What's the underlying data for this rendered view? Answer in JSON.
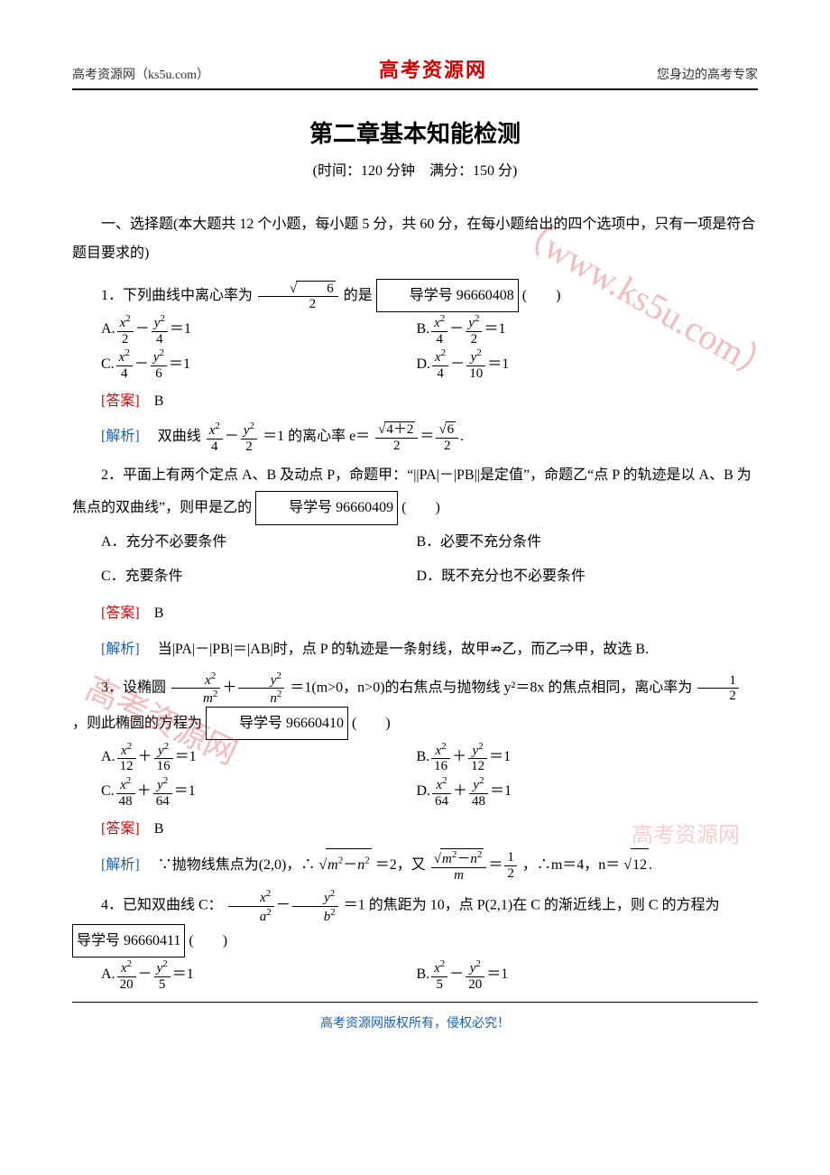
{
  "header": {
    "left": "高考资源网（ks5u.com）",
    "center": "高考资源网",
    "right": "您身边的高考专家"
  },
  "title": "第二章基本知能检测",
  "subtitle": "(时间：120 分钟　满分：150 分)",
  "section1_intro": "一、选择题(本大题共 12 个小题，每小题 5 分，共 60 分，在每小题给出的四个选项中，只有一项是符合题目要求的)",
  "q1": {
    "lead": "1．下列曲线中离心率为",
    "after": "的是",
    "box": "导学号 96660408",
    "paren": "(　　)",
    "A": "A.",
    "B": "B.",
    "C": "C.",
    "D": "D.",
    "ans_label": "[答案]",
    "ans": "B",
    "ana_label": "[解析]",
    "ana_text1": "双曲线",
    "ana_text2": "＝1 的离心率 e＝"
  },
  "q2": {
    "text": "2．平面上有两个定点 A、B 及动点 P，命题甲：“||PA|－|PB||是定值”，命题乙“点 P 的轨迹是以 A、B 为焦点的双曲线”，则甲是乙的",
    "box": "导学号 96660409",
    "paren": "(　　)",
    "A": "A．充分不必要条件",
    "B": "B．必要不充分条件",
    "C": "C．充要条件",
    "D": "D．既不充分也不必要条件",
    "ans_label": "[答案]",
    "ans": "B",
    "ana_label": "[解析]",
    "ana_text": "当|PA|－|PB|＝|AB|时，点 P 的轨迹是一条射线，故甲⇏乙，而乙⇒甲，故选 B."
  },
  "q3": {
    "lead": "3．设椭圆",
    "mid": "＝1(m>0，n>0)的右焦点与抛物线 y²＝8x 的焦点相同，离心率为",
    "tail": "，则此椭圆的方程为",
    "box": "导学号 96660410",
    "paren": "(　　)",
    "A": "A.",
    "B": "B.",
    "C": "C.",
    "D": "D.",
    "ans_label": "[答案]",
    "ans": "B",
    "ana_label": "[解析]",
    "ana_text1": "∵抛物线焦点为(2,0)，∴",
    "ana_text2": "＝2，又",
    "ana_text3": "，∴m＝4，n＝"
  },
  "q4": {
    "lead": "4．已知双曲线 C：",
    "mid": "＝1 的焦距为 10，点 P(2,1)在 C 的渐近线上，则 C 的方程为",
    "box": "导学号 96660411",
    "paren": "(　　)",
    "A": "A.",
    "B": "B."
  },
  "footer": "高考资源网版权所有，侵权必究！",
  "watermarks": {
    "w1": "（www.ks5u.com）",
    "w2": "高考资源网",
    "w3": "高考资源网"
  },
  "colors": {
    "red": "#d40000",
    "blue": "#1560bd",
    "text": "#000000",
    "wm": "rgba(220,60,60,0.35)"
  },
  "fonts": {
    "body": "SimSun",
    "title": "SimHei",
    "brand": "KaiTi"
  }
}
